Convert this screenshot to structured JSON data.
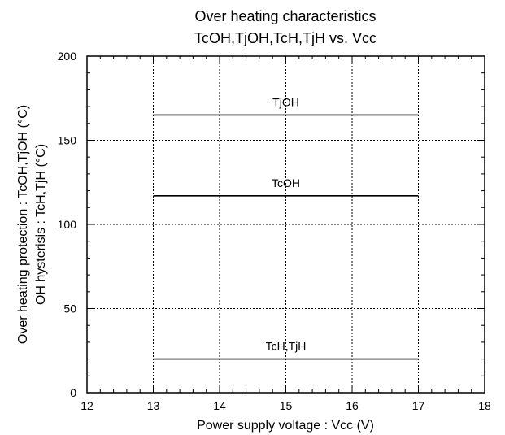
{
  "chart_data": {
    "type": "line",
    "title": [
      "Over heating characteristics",
      "TcOH,TjOH,TcH,TjH vs. Vcc"
    ],
    "xlabel": "Power supply voltage : Vcc (V)",
    "ylabel": [
      "Over heating protection : TcOH,TjOH (°C)",
      "OH hysterisis : TcH,TjH (°C)"
    ],
    "xlim": [
      12,
      18
    ],
    "ylim": [
      0,
      200
    ],
    "xticks": [
      12,
      13,
      14,
      15,
      16,
      17,
      18
    ],
    "yticks": [
      0,
      50,
      100,
      150,
      200
    ],
    "grid": true,
    "series": [
      {
        "name": "TjOH",
        "x": [
          13,
          17
        ],
        "y": [
          165,
          165
        ]
      },
      {
        "name": "TcOH",
        "x": [
          13,
          17
        ],
        "y": [
          117,
          117
        ]
      },
      {
        "name": "TcH,TjH",
        "x": [
          13,
          17
        ],
        "y": [
          20,
          20
        ]
      }
    ]
  }
}
